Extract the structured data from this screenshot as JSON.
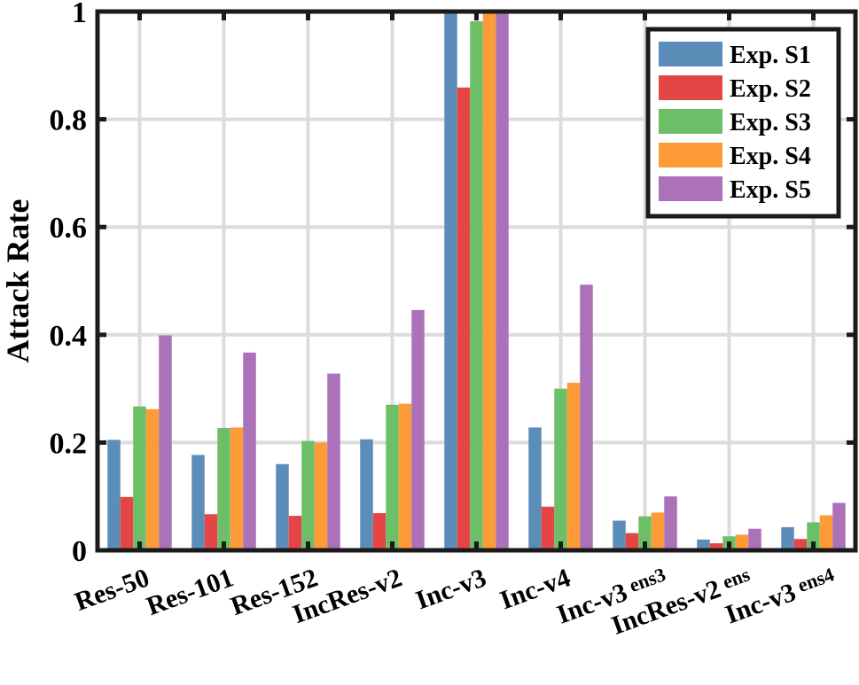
{
  "chart_data": {
    "type": "bar",
    "ylabel": "Attack Rate",
    "xlabel": "",
    "ylim": [
      0,
      1
    ],
    "yticks": [
      "0",
      "0.2",
      "0.4",
      "0.6",
      "0.8",
      "1"
    ],
    "grid": true,
    "legend_position": "top-right",
    "categories": [
      {
        "label": "Res-50",
        "sub": ""
      },
      {
        "label": "Res-101",
        "sub": ""
      },
      {
        "label": "Res-152",
        "sub": ""
      },
      {
        "label": "IncRes-v2",
        "sub": ""
      },
      {
        "label": "Inc-v3",
        "sub": ""
      },
      {
        "label": "Inc-v4",
        "sub": ""
      },
      {
        "label": "Inc-v3",
        "sub": "ens3"
      },
      {
        "label": "IncRes-v2",
        "sub": "ens"
      },
      {
        "label": "Inc-v3",
        "sub": "ens4"
      }
    ],
    "series": [
      {
        "name": "Exp. S1",
        "color": "#5b8db8",
        "values": [
          0.205,
          0.177,
          0.16,
          0.206,
          1.0,
          0.228,
          0.055,
          0.02,
          0.043
        ]
      },
      {
        "name": "Exp. S2",
        "color": "#e64545",
        "values": [
          0.099,
          0.067,
          0.064,
          0.069,
          0.859,
          0.081,
          0.032,
          0.013,
          0.021
        ]
      },
      {
        "name": "Exp. S3",
        "color": "#6dbf67",
        "values": [
          0.267,
          0.227,
          0.203,
          0.27,
          0.982,
          0.3,
          0.063,
          0.026,
          0.052
        ]
      },
      {
        "name": "Exp. S4",
        "color": "#fd9b38",
        "values": [
          0.262,
          0.228,
          0.2,
          0.272,
          1.0,
          0.311,
          0.07,
          0.029,
          0.065
        ]
      },
      {
        "name": "Exp. S5",
        "color": "#ab72b9",
        "values": [
          0.399,
          0.367,
          0.328,
          0.446,
          1.0,
          0.493,
          0.1,
          0.04,
          0.088
        ]
      }
    ]
  }
}
